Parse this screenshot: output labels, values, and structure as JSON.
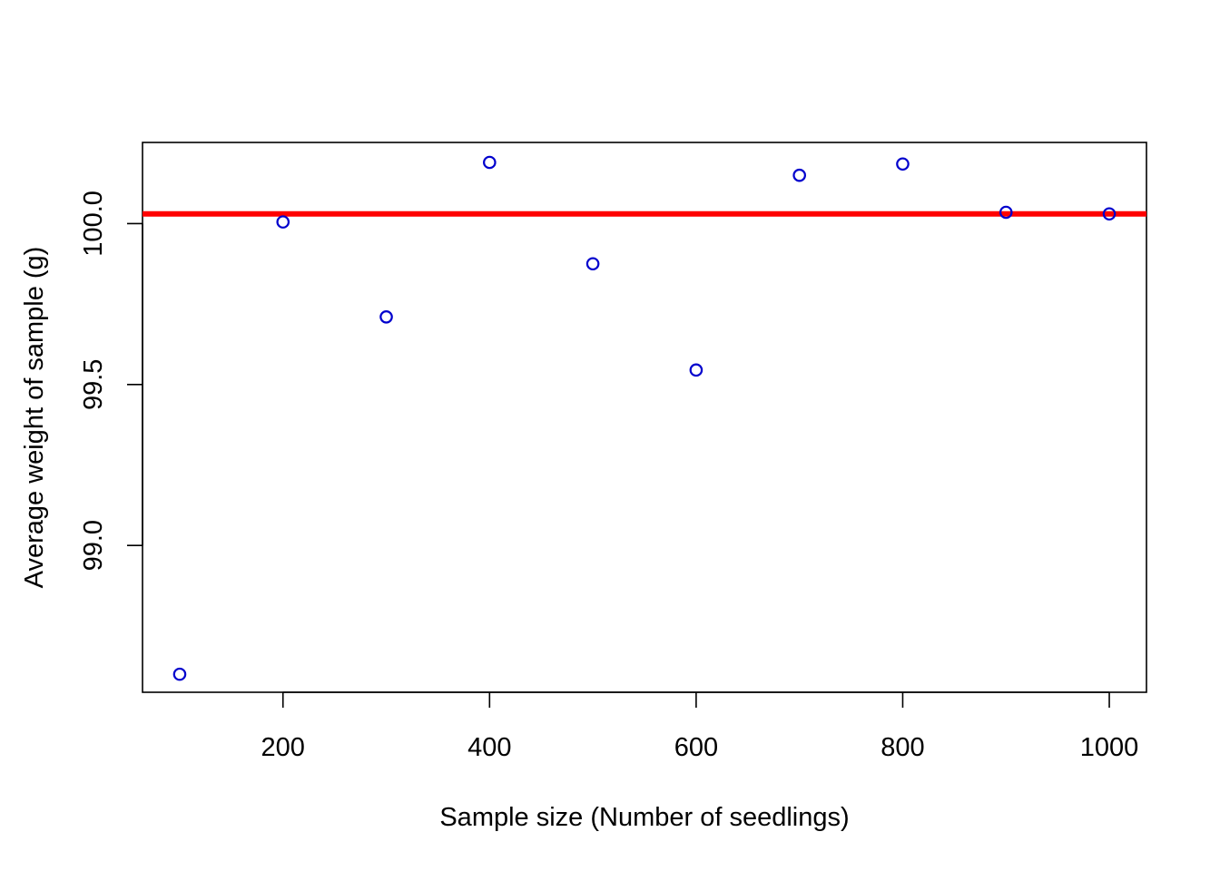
{
  "chart_data": {
    "type": "scatter",
    "title": "",
    "xlabel": "Sample size (Number of seedlings)",
    "ylabel": "Average weight of sample (g)",
    "x": [
      100,
      200,
      300,
      400,
      500,
      600,
      700,
      800,
      900,
      1000
    ],
    "y": [
      98.6,
      100.005,
      99.71,
      100.19,
      99.875,
      99.545,
      100.15,
      100.185,
      100.035,
      100.03
    ],
    "xlim": [
      64,
      1036
    ],
    "ylim": [
      98.544,
      100.252
    ],
    "x_ticks": [
      200,
      400,
      600,
      800,
      1000
    ],
    "x_tick_labels": [
      "200",
      "400",
      "600",
      "800",
      "1000"
    ],
    "y_ticks": [
      99.0,
      99.5,
      100.0
    ],
    "y_tick_labels": [
      "99.0",
      "99.5",
      "100.0"
    ],
    "reference_line": {
      "orientation": "horizontal",
      "y": 100.03,
      "color": "#ff0000"
    },
    "point_color": "#0000cd",
    "point_style": "open-circle",
    "grid": false,
    "legend": "none"
  }
}
